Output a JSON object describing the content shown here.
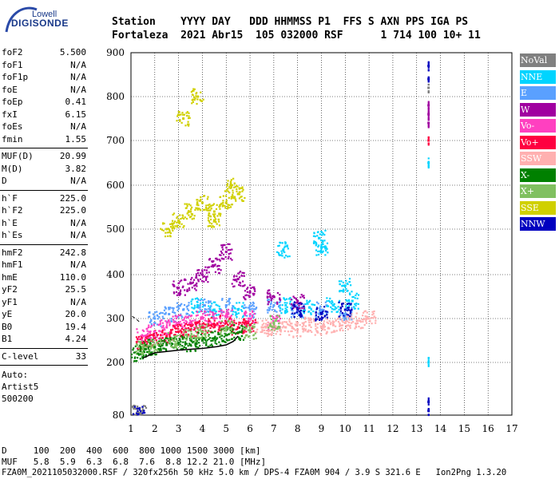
{
  "logo": {
    "top": "Lowell",
    "main": "DIGISONDE"
  },
  "header": {
    "line1": "Station    YYYY DAY   DDD HHMMSS P1  FFS S AXN PPS IGA PS",
    "line2": "Fortaleza  2021 Abr15  105 032000 RSF      1 714 100 10+ 11"
  },
  "params_group1": [
    {
      "k": "foF2",
      "v": "5.500"
    },
    {
      "k": "foF1",
      "v": "N/A"
    },
    {
      "k": "foF1p",
      "v": "N/A"
    },
    {
      "k": "foE",
      "v": "N/A"
    },
    {
      "k": "foEp",
      "v": "0.41"
    },
    {
      "k": "fxI",
      "v": "6.15"
    },
    {
      "k": "foEs",
      "v": "N/A"
    },
    {
      "k": "fmin",
      "v": "1.55"
    }
  ],
  "params_group2": [
    {
      "k": "MUF(D)",
      "v": "20.99"
    },
    {
      "k": "M(D)",
      "v": "3.82"
    },
    {
      "k": "D",
      "v": "N/A"
    }
  ],
  "params_group3": [
    {
      "k": "h`F",
      "v": "225.0"
    },
    {
      "k": "h`F2",
      "v": "225.0"
    },
    {
      "k": "h`E",
      "v": "N/A"
    },
    {
      "k": "h`Es",
      "v": "N/A"
    }
  ],
  "params_group4": [
    {
      "k": "hmF2",
      "v": "242.8"
    },
    {
      "k": "hmF1",
      "v": "N/A"
    },
    {
      "k": "hmE",
      "v": "110.0"
    },
    {
      "k": "yF2",
      "v": "25.5"
    },
    {
      "k": "yF1",
      "v": "N/A"
    },
    {
      "k": "yE",
      "v": "20.0"
    },
    {
      "k": "B0",
      "v": "19.4"
    },
    {
      "k": "B1",
      "v": "4.24"
    }
  ],
  "clevel": {
    "k": "C-level",
    "v": "33"
  },
  "auto": {
    "line1": "Auto:",
    "line2": "Artist5",
    "line3": "500200"
  },
  "legend": [
    {
      "label": "NoVal",
      "bg": "#808080",
      "fg": "#ffffff"
    },
    {
      "label": "NNE",
      "bg": "#00d4ff",
      "fg": "#ffffff"
    },
    {
      "label": "E",
      "bg": "#5aa0ff",
      "fg": "#ffffff"
    },
    {
      "label": "W",
      "bg": "#a000a0",
      "fg": "#ffffff"
    },
    {
      "label": "Vo-",
      "bg": "#ff40c0",
      "fg": "#ffffff"
    },
    {
      "label": "Vo+",
      "bg": "#ff0040",
      "fg": "#ffffff"
    },
    {
      "label": "SSW",
      "bg": "#ffb0b0",
      "fg": "#ffffff"
    },
    {
      "label": "X-",
      "bg": "#008000",
      "fg": "#ffffff"
    },
    {
      "label": "X+",
      "bg": "#80c060",
      "fg": "#ffffff"
    },
    {
      "label": "SSE",
      "bg": "#d0d000",
      "fg": "#ffffff"
    },
    {
      "label": "NNW",
      "bg": "#0000c0",
      "fg": "#ffffff"
    }
  ],
  "bottom": {
    "d_line": "D     100  200  400  600  800 1000 1500 3000 [km]",
    "muf_line": "MUF   5.8  5.9  6.3  6.8  7.6  8.8 12.2 21.0 [MHz]",
    "file_line": "FZA0M_20211050320​00.RSF / 320fx256h 50 kHz 5.0 km / DPS-4 FZA0M 904 / 3.9 S 321.6 E   Ion2Png 1.3.20"
  },
  "chart_data": {
    "type": "scatter",
    "title": "",
    "xlabel": "",
    "ylabel": "",
    "xlim": [
      1,
      17
    ],
    "ylim": [
      80,
      900
    ],
    "x_ticks": [
      1,
      2,
      3,
      4,
      5,
      6,
      7,
      8,
      9,
      10,
      11,
      12,
      13,
      14,
      15,
      16,
      17
    ],
    "y_ticks": [
      80,
      200,
      300,
      400,
      500,
      600,
      700,
      800,
      900
    ],
    "grid": true,
    "series": [
      {
        "name": "NoVal",
        "color": "#808080",
        "points": [
          [
            1.3,
            85
          ],
          [
            1.4,
            84
          ],
          [
            13.5,
            820
          ]
        ]
      },
      {
        "name": "NNE",
        "color": "#00d4ff",
        "points": [
          [
            3.8,
            330
          ],
          [
            4.5,
            320
          ],
          [
            5.5,
            320
          ],
          [
            7.5,
            330
          ],
          [
            8.5,
            325
          ],
          [
            9.5,
            330
          ],
          [
            10.3,
            340
          ],
          [
            10.0,
            375
          ],
          [
            8.9,
            480
          ],
          [
            7.4,
            455
          ],
          [
            9.0,
            460
          ],
          [
            13.5,
            650
          ],
          [
            13.5,
            200
          ]
        ]
      },
      {
        "name": "E",
        "color": "#5aa0ff",
        "points": [
          [
            2.0,
            300
          ],
          [
            2.6,
            310
          ],
          [
            3.2,
            320
          ],
          [
            4.1,
            330
          ],
          [
            5.0,
            330
          ],
          [
            6.0,
            320
          ],
          [
            7.0,
            330
          ],
          [
            8.0,
            320
          ],
          [
            9.0,
            320
          ],
          [
            10.0,
            310
          ]
        ]
      },
      {
        "name": "W",
        "color": "#a000a0",
        "points": [
          [
            3.0,
            370
          ],
          [
            3.5,
            380
          ],
          [
            4.0,
            400
          ],
          [
            4.5,
            420
          ],
          [
            5.0,
            450
          ],
          [
            5.5,
            390
          ],
          [
            6.0,
            360
          ],
          [
            7.0,
            350
          ],
          [
            8.0,
            340
          ],
          [
            13.5,
            760
          ],
          [
            13.5,
            780
          ],
          [
            13.5,
            740
          ]
        ]
      },
      {
        "name": "Vo-",
        "color": "#ff40c0",
        "points": [
          [
            1.5,
            260
          ],
          [
            2.0,
            270
          ],
          [
            2.5,
            280
          ],
          [
            3.0,
            290
          ],
          [
            3.5,
            290
          ],
          [
            4.0,
            300
          ],
          [
            4.5,
            300
          ],
          [
            5.0,
            305
          ],
          [
            6.0,
            300
          ],
          [
            7.0,
            290
          ]
        ]
      },
      {
        "name": "Vo+",
        "color": "#ff0040",
        "points": [
          [
            1.5,
            245
          ],
          [
            2.0,
            255
          ],
          [
            2.5,
            260
          ],
          [
            3.0,
            270
          ],
          [
            3.5,
            275
          ],
          [
            4.0,
            280
          ],
          [
            4.5,
            285
          ],
          [
            5.0,
            290
          ],
          [
            5.5,
            280
          ],
          [
            6.0,
            285
          ],
          [
            13.5,
            700
          ]
        ]
      },
      {
        "name": "SSW",
        "color": "#ffb0b0",
        "points": [
          [
            6.5,
            280
          ],
          [
            7.0,
            275
          ],
          [
            7.5,
            280
          ],
          [
            8.0,
            275
          ],
          [
            8.5,
            285
          ],
          [
            9.0,
            280
          ],
          [
            9.5,
            285
          ],
          [
            10.0,
            290
          ],
          [
            10.5,
            295
          ],
          [
            11.0,
            300
          ]
        ]
      },
      {
        "name": "X-",
        "color": "#008000",
        "points": [
          [
            1.3,
            220
          ],
          [
            1.6,
            230
          ],
          [
            2.0,
            235
          ],
          [
            2.5,
            240
          ],
          [
            3.0,
            245
          ],
          [
            3.5,
            240
          ],
          [
            4.0,
            250
          ],
          [
            4.5,
            255
          ],
          [
            5.0,
            262
          ],
          [
            5.5,
            268
          ]
        ]
      },
      {
        "name": "X+",
        "color": "#80c060",
        "points": [
          [
            1.5,
            235
          ],
          [
            2.0,
            240
          ],
          [
            2.8,
            250
          ],
          [
            3.5,
            260
          ],
          [
            4.0,
            270
          ],
          [
            5.0,
            280
          ],
          [
            6.0,
            270
          ],
          [
            7.0,
            290
          ]
        ]
      },
      {
        "name": "SSE",
        "color": "#d0d000",
        "points": [
          [
            2.5,
            500
          ],
          [
            3.0,
            520
          ],
          [
            3.5,
            540
          ],
          [
            4.0,
            560
          ],
          [
            4.5,
            540
          ],
          [
            5.0,
            560
          ],
          [
            5.5,
            580
          ],
          [
            3.2,
            750
          ],
          [
            3.8,
            800
          ],
          [
            4.5,
            520
          ],
          [
            5.2,
            600
          ]
        ]
      },
      {
        "name": "NNW",
        "color": "#0000c0",
        "points": [
          [
            13.5,
            870
          ],
          [
            13.5,
            840
          ],
          [
            13.5,
            90
          ],
          [
            13.5,
            110
          ],
          [
            8.0,
            320
          ],
          [
            9.0,
            310
          ],
          [
            10.0,
            320
          ],
          [
            1.3,
            82
          ]
        ]
      }
    ],
    "profile_curve": [
      [
        1.5,
        210
      ],
      [
        2.0,
        222
      ],
      [
        3.0,
        228
      ],
      [
        4.0,
        232
      ],
      [
        4.6,
        236
      ],
      [
        5.0,
        240
      ],
      [
        5.3,
        248
      ],
      [
        5.5,
        260
      ]
    ],
    "dashed_curve": [
      [
        1.05,
        305
      ],
      [
        1.2,
        300
      ],
      [
        1.4,
        290
      ]
    ]
  }
}
